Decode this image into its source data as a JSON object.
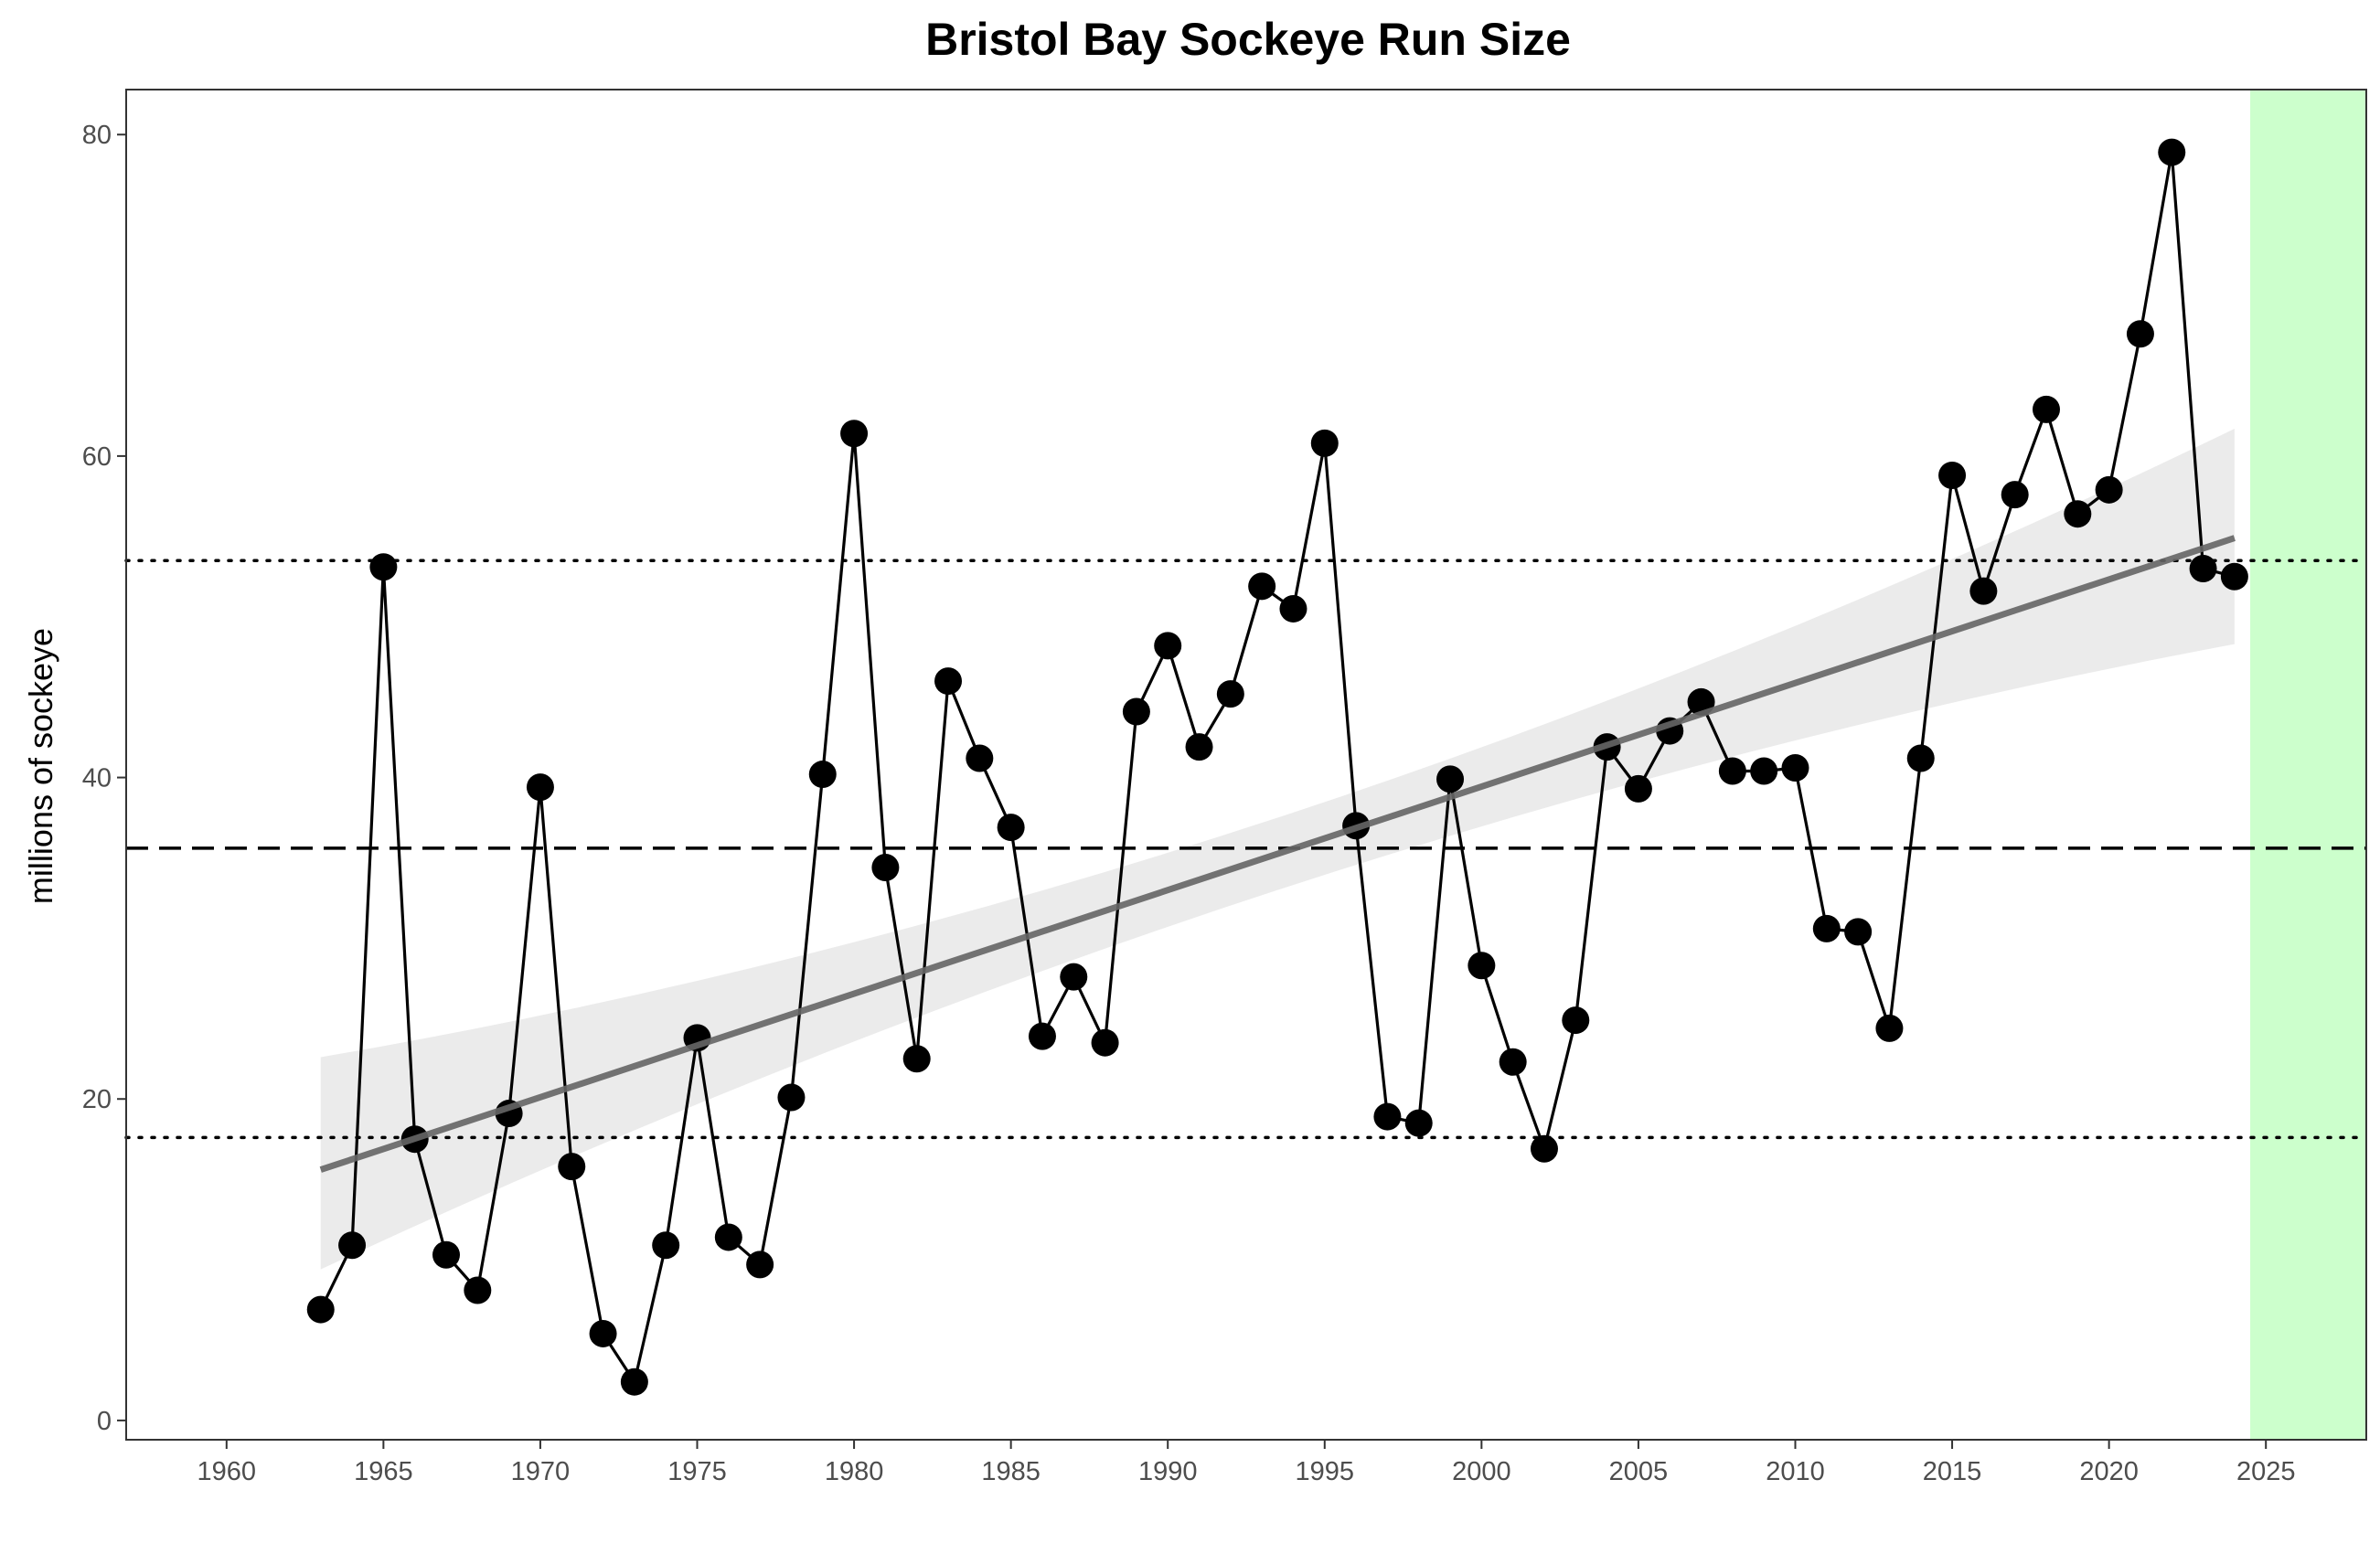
{
  "chart_data": {
    "type": "line",
    "title": "Bristol Bay Sockeye Run Size",
    "xlabel": "",
    "ylabel": "millions of sockeye",
    "xlim": [
      1956.8,
      2028.2
    ],
    "ylim": [
      -1.2,
      82.8
    ],
    "x_ticks": [
      1960,
      1965,
      1970,
      1975,
      1980,
      1985,
      1990,
      1995,
      2000,
      2005,
      2010,
      2015,
      2020,
      2025
    ],
    "y_ticks": [
      0,
      20,
      40,
      60,
      80
    ],
    "grid": false,
    "series": [
      {
        "values": [
          [
            1963,
            6.9
          ],
          [
            1964,
            10.9
          ],
          [
            1965,
            53.1
          ],
          [
            1966,
            17.5
          ],
          [
            1967,
            10.3
          ],
          [
            1968,
            8.1
          ],
          [
            1969,
            19.1
          ],
          [
            1970,
            39.4
          ],
          [
            1971,
            15.8
          ],
          [
            1972,
            5.4
          ],
          [
            1973,
            2.4
          ],
          [
            1974,
            10.9
          ],
          [
            1975,
            23.8
          ],
          [
            1976,
            11.4
          ],
          [
            1977,
            9.7
          ],
          [
            1978,
            20.1
          ],
          [
            1979,
            40.2
          ],
          [
            1980,
            61.4
          ],
          [
            1981,
            34.4
          ],
          [
            1982,
            22.5
          ],
          [
            1983,
            46.0
          ],
          [
            1984,
            41.2
          ],
          [
            1985,
            36.9
          ],
          [
            1986,
            23.9
          ],
          [
            1987,
            27.6
          ],
          [
            1988,
            23.5
          ],
          [
            1989,
            44.1
          ],
          [
            1990,
            48.2
          ],
          [
            1991,
            41.9
          ],
          [
            1992,
            45.2
          ],
          [
            1993,
            51.9
          ],
          [
            1994,
            50.5
          ],
          [
            1995,
            60.8
          ],
          [
            1996,
            37.0
          ],
          [
            1997,
            18.9
          ],
          [
            1998,
            18.5
          ],
          [
            1999,
            39.9
          ],
          [
            2000,
            28.3
          ],
          [
            2001,
            22.3
          ],
          [
            2002,
            16.9
          ],
          [
            2003,
            24.9
          ],
          [
            2004,
            41.9
          ],
          [
            2005,
            39.3
          ],
          [
            2006,
            42.9
          ],
          [
            2007,
            44.7
          ],
          [
            2008,
            40.4
          ],
          [
            2009,
            40.4
          ],
          [
            2010,
            40.6
          ],
          [
            2011,
            30.6
          ],
          [
            2012,
            30.4
          ],
          [
            2013,
            24.4
          ],
          [
            2014,
            41.2
          ],
          [
            2015,
            58.8
          ],
          [
            2016,
            51.6
          ],
          [
            2017,
            57.6
          ],
          [
            2018,
            62.9
          ],
          [
            2019,
            56.4
          ],
          [
            2020,
            57.9
          ],
          [
            2021,
            67.6
          ],
          [
            2022,
            78.9
          ],
          [
            2023,
            53.0
          ],
          [
            2024,
            52.5
          ]
        ]
      }
    ],
    "trend_line": {
      "start": [
        1963,
        15.6
      ],
      "end": [
        2024,
        54.9
      ],
      "confidence_band": {
        "start": [
          9.4,
          22.6
        ],
        "middle": [
          1993.5,
          33.0,
          37.5
        ],
        "end": [
          48.3,
          61.7
        ]
      }
    },
    "reference_lines": {
      "mean": 35.6,
      "lower": 17.6,
      "upper": 53.5
    },
    "highlight_region": {
      "x_start": 2024.5,
      "x_end": 2028.2,
      "color": "#ccffcc"
    },
    "colors": {
      "points": "#000000",
      "trend": "#666666",
      "band": "#ebebeb"
    }
  }
}
